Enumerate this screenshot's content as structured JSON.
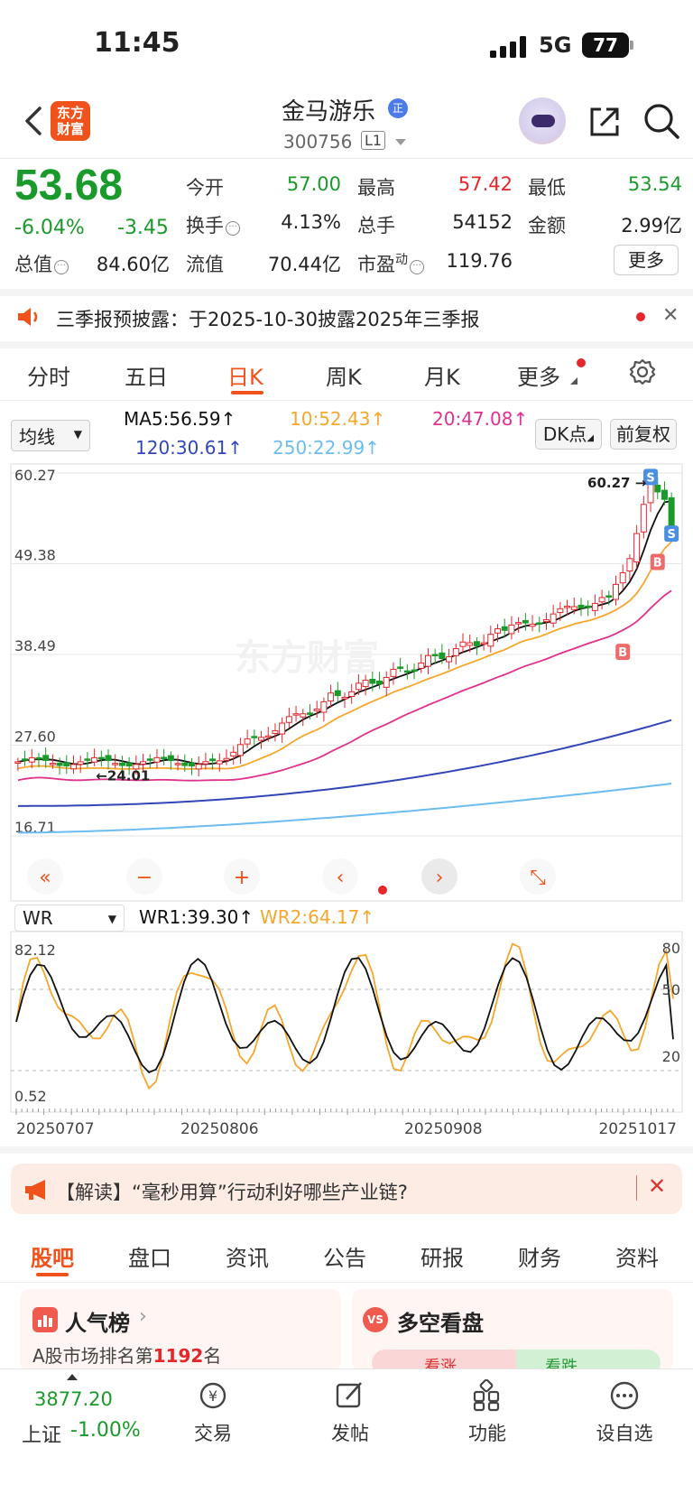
{
  "status_bar": {
    "time": "11:45",
    "network": "5G",
    "battery": "77"
  },
  "header": {
    "logo": "东方财富",
    "name": "金马游乐",
    "name_badge": "正",
    "code": "300756",
    "level": "L1"
  },
  "quote": {
    "price": "53.68",
    "pct_change": "-6.04%",
    "change": "-3.45",
    "fields": {
      "open_label": "今开",
      "open": "57.00",
      "high_label": "最高",
      "high": "57.42",
      "low_label": "最低",
      "low": "53.54",
      "turnover_label": "换手",
      "turnover": "4.13%",
      "volume_label": "总手",
      "volume": "54152",
      "amount_label": "金额",
      "amount": "2.99亿",
      "mktcap_label": "总值",
      "mktcap": "84.60亿",
      "float_label": "流值",
      "float": "70.44亿",
      "pe_label": "市盈",
      "pe_super": "动",
      "pe": "119.76"
    },
    "more_label": "更多"
  },
  "notice": {
    "text": "三季报预披露：于2025-10-30披露2025年三季报"
  },
  "kline_tabs": [
    "分时",
    "五日",
    "日K",
    "周K",
    "月K",
    "更多"
  ],
  "kline_active": "日K",
  "indicator": {
    "select_label": "均线",
    "ma5": "MA5:56.59↑",
    "ma10": "10:52.43↑",
    "ma20": "20:47.08↑",
    "ma120": "120:30.61↑",
    "ma250": "250:22.99↑",
    "dk_label": "DK点",
    "fq_label": "前复权",
    "colors": {
      "ma5": "#111111",
      "ma10": "#f4a72b",
      "ma20": "#e0318c",
      "ma120": "#3346b8",
      "ma250": "#6cbcf0"
    }
  },
  "chart_data": [
    {
      "type": "candlestick",
      "y_ticks": [
        "60.27",
        "49.38",
        "38.49",
        "27.60",
        "16.71"
      ],
      "ylim": [
        16.71,
        60.27
      ],
      "annotations": {
        "max_label": "60.27",
        "min_label": "←24.01"
      },
      "markers": [
        "S",
        "S",
        "B",
        "B"
      ],
      "last_close": 53.68,
      "ma_last": {
        "MA5": 56.59,
        "MA10": 52.43,
        "MA20": 47.08,
        "MA120": 30.61,
        "MA250": 22.99
      }
    },
    {
      "type": "line",
      "title": "WR",
      "series": [
        {
          "name": "WR1:39.30↑",
          "last": 39.3
        },
        {
          "name": "WR2:64.17↑",
          "last": 64.17
        }
      ],
      "left_ticks": [
        "82.12",
        "0.52"
      ],
      "right_ticks": [
        "80",
        "50",
        "20"
      ],
      "x_ticks": [
        "20250707",
        "20250806",
        "20250908",
        "20251017"
      ]
    }
  ],
  "wr_panel": {
    "select_label": "WR",
    "wr1": "WR1:39.30↑",
    "wr2": "WR2:64.17↑"
  },
  "banner": {
    "text": "【解读】“毫秒用算”行动利好哪些产业链?"
  },
  "bottom_tabs": [
    "股吧",
    "盘口",
    "资讯",
    "公告",
    "研报",
    "财务",
    "资料"
  ],
  "bottom_tab_active": "股吧",
  "cards": {
    "popularity_title": "人气榜",
    "popularity_sub_prefix": "A股市场排名第",
    "popularity_rank": "1192",
    "popularity_sub_suffix": "名",
    "vs_title": "多空看盘",
    "vs_badge": "VS",
    "bull": "看涨",
    "bear": "看跌"
  },
  "bottom_nav": {
    "index_value": "3877.20",
    "index_name": "上证",
    "index_change": "-1.00%",
    "items": [
      "交易",
      "发帖",
      "功能",
      "设自选"
    ]
  }
}
